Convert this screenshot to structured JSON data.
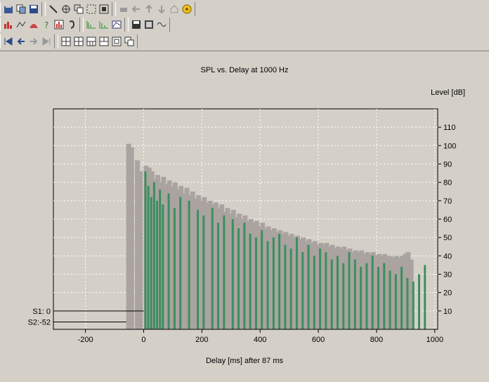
{
  "chart_data": {
    "type": "bar",
    "title": "SPL vs. Delay at 1000 Hz",
    "xlabel": "Delay [ms] after 87 ms",
    "ylabel": "Level [dB]",
    "xlim": [
      -310,
      1010
    ],
    "ylim": [
      0,
      120
    ],
    "x_ticks": [
      -200,
      0,
      200,
      400,
      600,
      800,
      1000
    ],
    "y_ticks": [
      10,
      20,
      30,
      40,
      50,
      60,
      70,
      80,
      90,
      100,
      110
    ],
    "grid": true,
    "colors": {
      "series_gray": "#aaa3a0",
      "series_green": "#3c8f5e",
      "plot_bg": "#d4d0c8"
    },
    "series": [
      {
        "name": "S1",
        "x": [
          0,
          10,
          20,
          30,
          40,
          50,
          60,
          80,
          100,
          120,
          150,
          180,
          200,
          230,
          250,
          270,
          300,
          320,
          340,
          360,
          380,
          400,
          420,
          440,
          460,
          480,
          500,
          520,
          540,
          560,
          580,
          600,
          620,
          640,
          660,
          680,
          700,
          720,
          740,
          760,
          780,
          800,
          820,
          840,
          860,
          880,
          900,
          920,
          940,
          960
        ],
        "values": [
          86,
          78,
          72,
          80,
          70,
          76,
          68,
          74,
          66,
          72,
          70,
          65,
          62,
          66,
          58,
          62,
          60,
          55,
          58,
          52,
          50,
          54,
          48,
          50,
          52,
          46,
          44,
          50,
          42,
          46,
          40,
          44,
          42,
          38,
          40,
          36,
          42,
          38,
          34,
          36,
          40,
          34,
          36,
          32,
          30,
          34,
          28,
          26,
          30,
          35
        ]
      },
      {
        "name": "S2",
        "x": [
          -60,
          -50,
          -30,
          -20,
          0,
          10,
          20,
          30,
          40,
          50,
          60,
          70,
          80,
          90,
          100,
          110,
          120,
          130,
          140,
          150,
          160,
          170,
          180,
          190,
          200,
          210,
          220,
          230,
          240,
          250,
          260,
          270,
          280,
          290,
          300,
          310,
          320,
          330,
          340,
          350,
          360,
          370,
          380,
          390,
          400,
          410,
          420,
          430,
          440,
          450,
          460,
          470,
          480,
          490,
          500,
          510,
          520,
          530,
          540,
          550,
          560,
          570,
          580,
          590,
          600,
          610,
          620,
          630,
          640,
          650,
          660,
          670,
          680,
          690,
          700,
          710,
          720,
          730,
          740,
          750,
          760,
          770,
          780,
          790,
          800,
          810,
          820,
          830,
          840,
          850,
          860,
          870,
          880,
          890,
          900,
          910
        ],
        "values": [
          101,
          99,
          92,
          86,
          89,
          88,
          86,
          82,
          84,
          80,
          83,
          79,
          81,
          78,
          80,
          76,
          78,
          74,
          77,
          73,
          75,
          71,
          73,
          70,
          72,
          69,
          70,
          68,
          69,
          66,
          68,
          64,
          66,
          63,
          65,
          61,
          63,
          60,
          62,
          59,
          60,
          58,
          59,
          56,
          58,
          55,
          56,
          54,
          55,
          53,
          54,
          52,
          53,
          51,
          52,
          50,
          51,
          49,
          50,
          48,
          49,
          47,
          48,
          46,
          47,
          46,
          47,
          45,
          46,
          44,
          45,
          44,
          45,
          43,
          44,
          42,
          43,
          42,
          43,
          41,
          42,
          41,
          42,
          40,
          41,
          40,
          41,
          40,
          40,
          39,
          40,
          39,
          40,
          41,
          42,
          38
        ]
      }
    ],
    "annotations": [
      {
        "label": "S1: 0",
        "level": 10
      },
      {
        "label": "S2:-52",
        "level": 4
      }
    ]
  }
}
